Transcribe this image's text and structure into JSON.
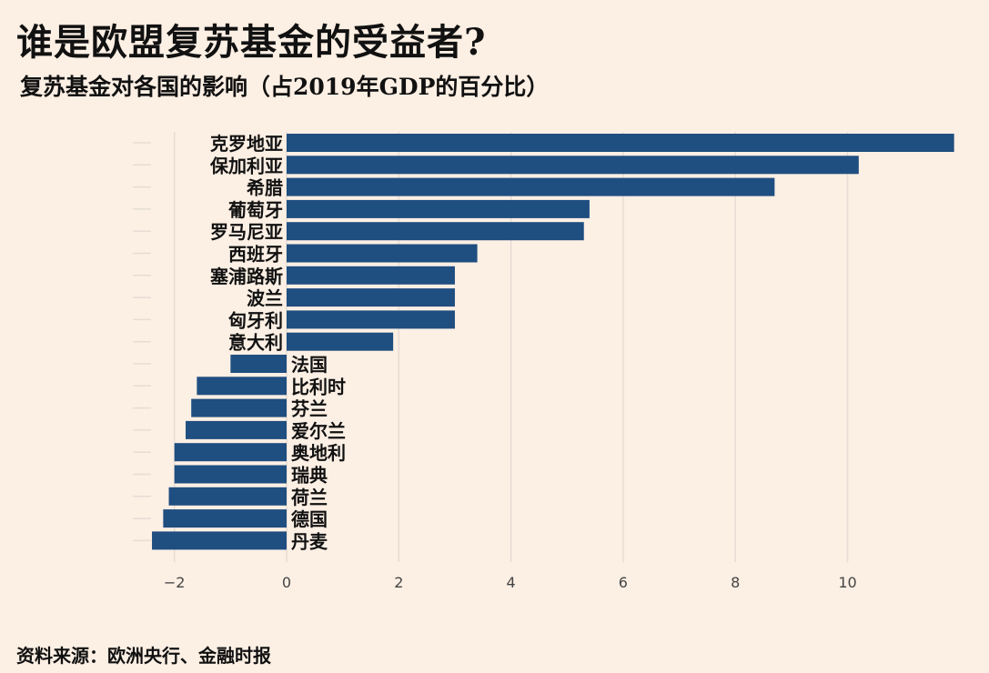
{
  "title": "谁是欧盟复苏基金的受益者?",
  "subtitle": "复苏基金对各国的影响（占2019年GDP的百分比）",
  "source": "资料来源：欧洲央行、金融时报",
  "colors": {
    "background": "#fcefe4",
    "bar": "#1f4e80",
    "grid": "#e6ddd4"
  },
  "chart_data": {
    "type": "bar",
    "orientation": "horizontal",
    "categories": [
      "克罗地亚",
      "保加利亚",
      "希腊",
      "葡萄牙",
      "罗马尼亚",
      "西班牙",
      "塞浦路斯",
      "波兰",
      "匈牙利",
      "意大利",
      "法国",
      "比利时",
      "芬兰",
      "爱尔兰",
      "奥地利",
      "瑞典",
      "荷兰",
      "德国",
      "丹麦"
    ],
    "values": [
      11.9,
      10.2,
      8.7,
      5.4,
      5.3,
      3.4,
      3.0,
      3.0,
      3.0,
      1.9,
      -1.0,
      -1.6,
      -1.7,
      -1.8,
      -2.0,
      -2.0,
      -2.1,
      -2.2,
      -2.4
    ],
    "xlim": [
      -2.5,
      12
    ],
    "ticks": [
      "-2",
      "0",
      "2",
      "4",
      "6",
      "8",
      "10"
    ],
    "grid": true,
    "xlabel": "",
    "ylabel": ""
  }
}
